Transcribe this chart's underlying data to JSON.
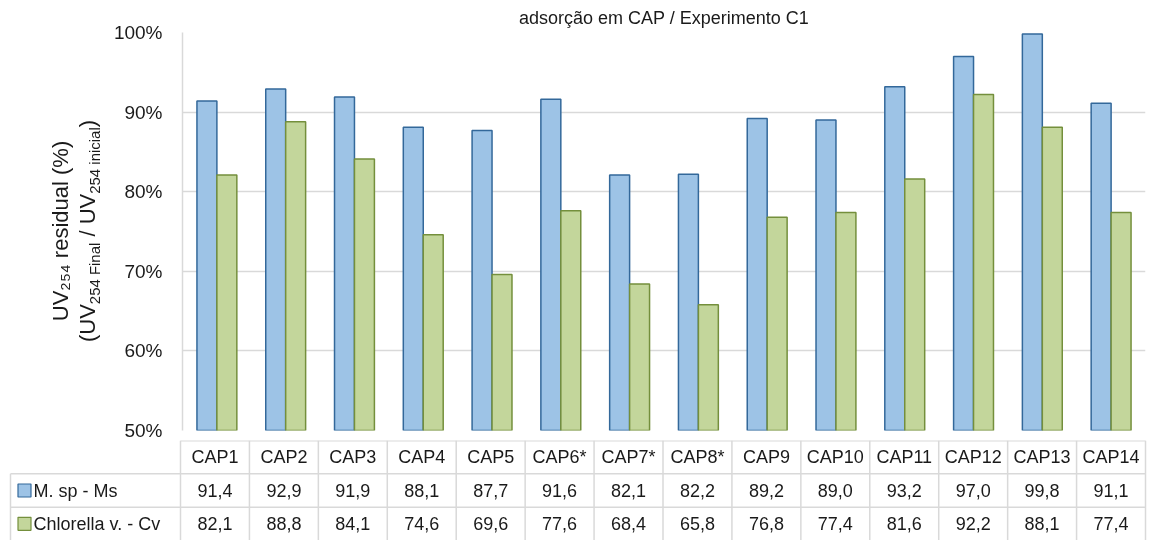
{
  "chart_data": {
    "type": "bar",
    "title": "adsorção em CAP / Experimento C1",
    "ylabel": "UV₂₅₄ residual (%)\n(UV$_{254 Final}$ / UV$_{254 inicial}$)",
    "categories": [
      "CAP1",
      "CAP2",
      "CAP3",
      "CAP4",
      "CAP5",
      "CAP6*",
      "CAP7*",
      "CAP8*",
      "CAP9",
      "CAP10",
      "CAP11",
      "CAP12",
      "CAP13",
      "CAP14"
    ],
    "series": [
      {
        "name": "M. sp - Ms",
        "color": "#9dc3e6",
        "values": [
          91.4,
          92.9,
          91.9,
          88.1,
          87.7,
          91.6,
          82.1,
          82.2,
          89.2,
          89.0,
          93.2,
          97.0,
          99.8,
          91.1
        ],
        "value_labels": [
          "91,4",
          "92,9",
          "91,9",
          "88,1",
          "87,7",
          "91,6",
          "82,1",
          "82,2",
          "89,2",
          "89,0",
          "93,2",
          "97,0",
          "99,8",
          "91,1"
        ]
      },
      {
        "name": "Chlorella v. - Cv",
        "color": "#c3d69b",
        "values": [
          82.1,
          88.8,
          84.1,
          74.6,
          69.6,
          77.6,
          68.4,
          65.8,
          76.8,
          77.4,
          81.6,
          92.2,
          88.1,
          77.4
        ],
        "value_labels": [
          "82,1",
          "88,8",
          "84,1",
          "74,6",
          "69,6",
          "77,6",
          "68,4",
          "65,8",
          "76,8",
          "77,4",
          "81,6",
          "92,2",
          "88,1",
          "77,4"
        ]
      }
    ],
    "ylim": [
      50,
      100
    ],
    "yticks": [
      {
        "value": 50,
        "label": "50%"
      },
      {
        "value": 60,
        "label": "60%"
      },
      {
        "value": 70,
        "label": "70%"
      },
      {
        "value": 80,
        "label": "80%"
      },
      {
        "value": 90,
        "label": "90%"
      },
      {
        "value": 100,
        "label": "100%"
      }
    ],
    "grid": "y",
    "legend": "bottom"
  }
}
